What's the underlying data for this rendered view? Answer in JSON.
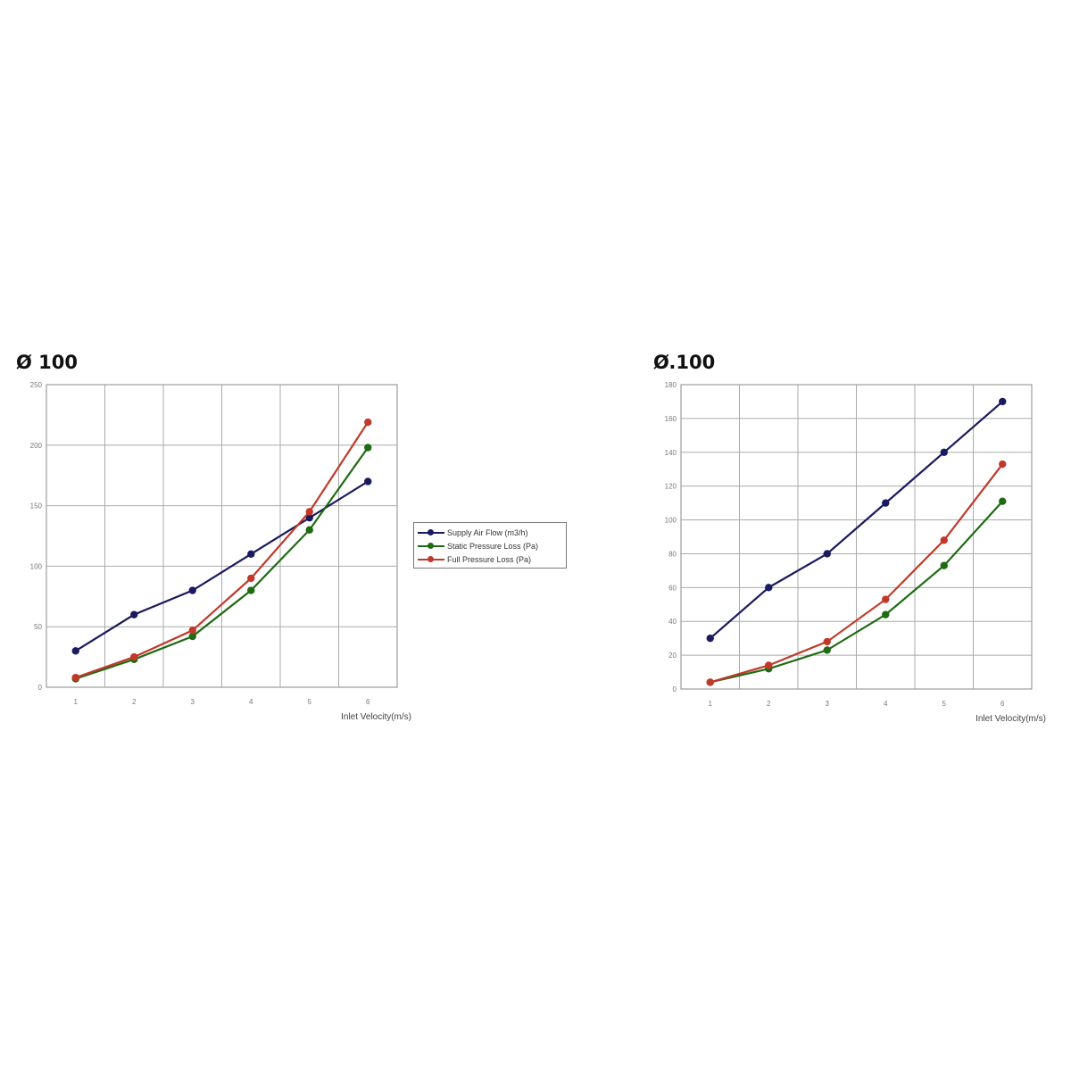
{
  "charts": {
    "left_title": "Ø 100",
    "right_title": "Ø.100"
  },
  "legend": {
    "items": [
      {
        "label": "Supply Air Flow (m3/h)",
        "color": "#1a1a5e"
      },
      {
        "label": "Static Pressure Loss (Pa)",
        "color": "#1e6b12"
      },
      {
        "label": "Full Pressure Loss (Pa)",
        "color": "#c0392b"
      }
    ]
  },
  "chart_data": [
    {
      "type": "line",
      "title": "Ø 100",
      "xlabel": "Inlet Velocity(m/s)",
      "ylabel": "",
      "x": [
        1,
        2,
        3,
        4,
        5,
        6
      ],
      "ylim": [
        0,
        250
      ],
      "yticks": [
        0,
        50,
        100,
        150,
        200,
        250
      ],
      "grid": true,
      "legend_position": "right",
      "series": [
        {
          "name": "Supply Air Flow (m3/h)",
          "color": "#1a1a5e",
          "values": [
            30,
            60,
            80,
            110,
            140,
            170
          ]
        },
        {
          "name": "Static Pressure Loss (Pa)",
          "color": "#1e6b12",
          "values": [
            7,
            23,
            42,
            80,
            130,
            198
          ]
        },
        {
          "name": "Full Pressure Loss (Pa)",
          "color": "#c0392b",
          "values": [
            8,
            25,
            47,
            90,
            145,
            219
          ]
        }
      ]
    },
    {
      "type": "line",
      "title": "Ø.100",
      "xlabel": "Inlet Velocity(m/s)",
      "ylabel": "",
      "x": [
        1,
        2,
        3,
        4,
        5,
        6
      ],
      "ylim": [
        0,
        180
      ],
      "yticks": [
        0,
        20,
        40,
        60,
        80,
        100,
        120,
        140,
        160,
        180
      ],
      "grid": true,
      "series": [
        {
          "name": "Supply Air Flow (m3/h)",
          "color": "#1a1a5e",
          "values": [
            30,
            60,
            80,
            110,
            140,
            170
          ]
        },
        {
          "name": "Static Pressure Loss (Pa)",
          "color": "#1e6b12",
          "values": [
            4,
            12,
            23,
            44,
            73,
            111
          ]
        },
        {
          "name": "Full Pressure Loss (Pa)",
          "color": "#c0392b",
          "values": [
            4,
            14,
            28,
            53,
            88,
            133
          ]
        }
      ]
    }
  ]
}
